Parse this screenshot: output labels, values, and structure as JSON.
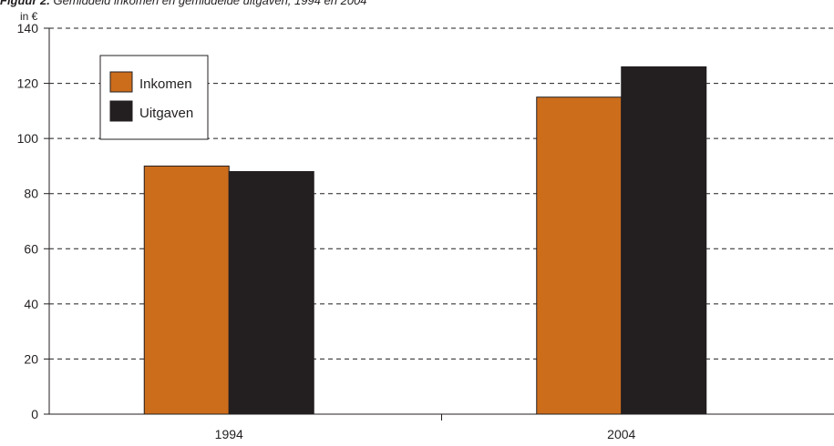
{
  "figure": {
    "label": "Figuur 2.",
    "title": "Gemiddeld inkomen en gemiddelde uitgaven, 1994 en 2004"
  },
  "chart_data": {
    "type": "bar",
    "title": "Gemiddeld inkomen en gemiddelde uitgaven, 1994 en 2004",
    "ylabel": "in €",
    "xlabel": "",
    "categories": [
      "1994",
      "2004"
    ],
    "series": [
      {
        "name": "Inkomen",
        "color": "#cc6d1c",
        "values": [
          90,
          115
        ]
      },
      {
        "name": "Uitgaven",
        "color": "#231f20",
        "values": [
          88,
          126
        ]
      }
    ],
    "ylim": [
      0,
      140
    ],
    "yticks": [
      0,
      20,
      40,
      60,
      80,
      100,
      120,
      140
    ],
    "grid": true,
    "grid_style": "dashed",
    "legend_position": "top-left"
  }
}
